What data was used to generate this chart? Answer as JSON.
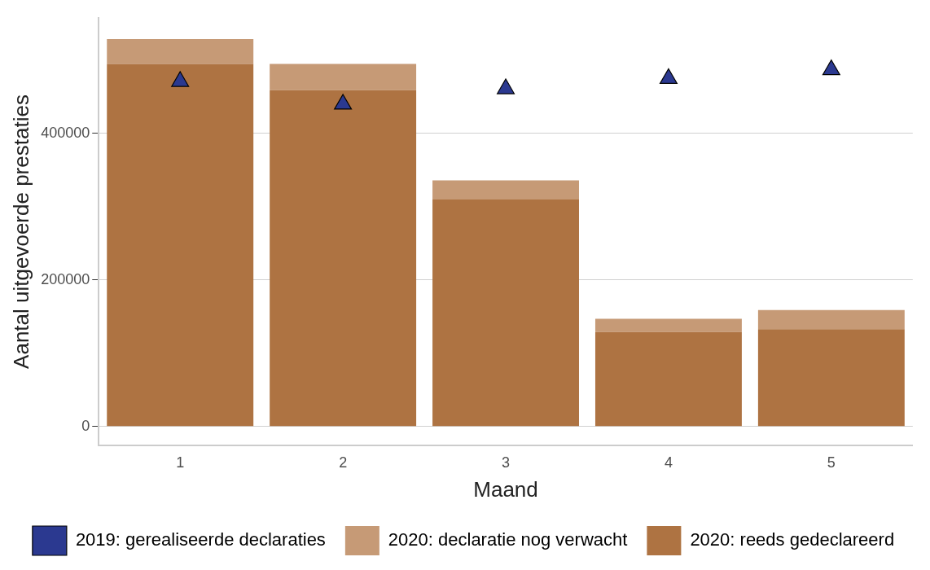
{
  "chart_data": {
    "type": "bar",
    "stacked": true,
    "xlabel": "Maand",
    "ylabel": "Aantal uitgevoerde prestaties",
    "categories": [
      "1",
      "2",
      "3",
      "4",
      "5"
    ],
    "series": [
      {
        "name": "2020: reeds gedeclareerd",
        "color": "#ae7342",
        "values": [
          495000,
          459000,
          310000,
          129000,
          133000
        ]
      },
      {
        "name": "2020: declaratie nog verwacht",
        "color": "#c69a76",
        "values": [
          34000,
          36000,
          26000,
          18000,
          26000
        ]
      },
      {
        "name": "2019: gerealiseerde declaraties",
        "type": "scatter",
        "marker": "triangle",
        "color": "#2b3990",
        "x": [
          "1",
          "2",
          "3",
          "4",
          "5"
        ],
        "values": [
          471000,
          440000,
          461000,
          475000,
          487000
        ]
      }
    ],
    "ylim": [
      -26000,
      558000
    ],
    "yticks": [
      0,
      200000,
      400000
    ],
    "grid": "y",
    "legend": "bottom"
  }
}
